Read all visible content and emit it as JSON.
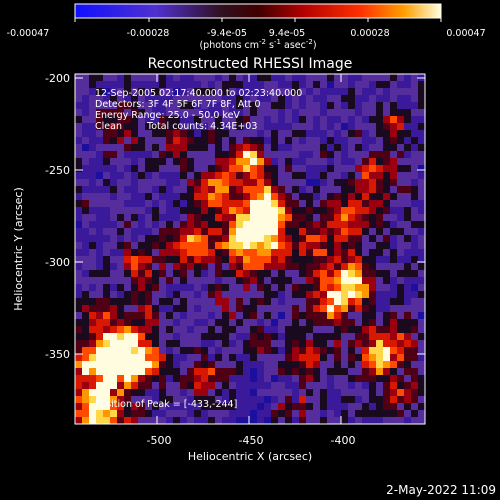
{
  "colorbar": {
    "ticks": [
      "-0.00047",
      "-0.00028",
      "-9.4e-05",
      "9.4e-05",
      "0.00028",
      "0.00047"
    ],
    "units_prefix": "(photons cm",
    "units_exp1": "-2",
    "units_mid": " s",
    "units_exp2": "-1",
    "units_mid2": " asec",
    "units_exp3": "-2",
    "units_suffix": ")"
  },
  "title": "Reconstructed RHESSI Image",
  "info": {
    "time": "12-Sep-2005 02:17:40.000 to 02:23:40.000",
    "detectors": "Detectors: 3F 4F 5F 6F 7F 8F, Att 0",
    "energy": "Energy Range: 25.0 - 50.0 keV",
    "clean": "Clean",
    "counts": "Total counts: 4.34E+03"
  },
  "peak": "Position of Peak = [-433,-244]",
  "axes": {
    "xlabel": "Heliocentric X (arcsec)",
    "ylabel": "Heliocentric Y (arcsec)",
    "xticks": [
      "-500",
      "-450",
      "-400"
    ],
    "yticks": [
      "-200",
      "-250",
      "-300",
      "-350"
    ]
  },
  "timestamp": "2-May-2022 11:09",
  "colors": {
    "background": "#000000",
    "axis": "#ffffff",
    "colormap": [
      "#0000ff",
      "#5a2dbe",
      "#000000",
      "#a00000",
      "#ff2000",
      "#ffa000",
      "#ffffff"
    ]
  }
}
